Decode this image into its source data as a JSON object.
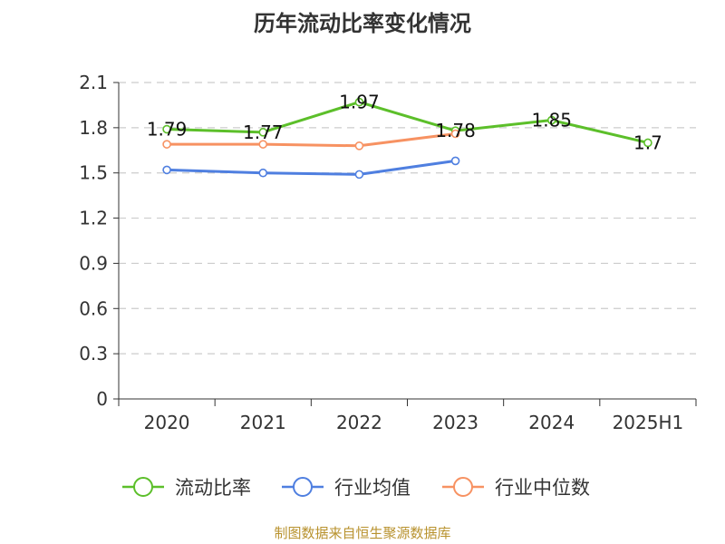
{
  "title": "历年流动比率变化情况",
  "source": "制图数据来自恒生聚源数据库",
  "colors": {
    "axis": "#333333",
    "grid": "#cccccc"
  },
  "chart_data": {
    "type": "line",
    "categories": [
      "2020",
      "2021",
      "2022",
      "2023",
      "2024",
      "2025H1"
    ],
    "y_ticks": [
      "0",
      "0.3",
      "0.6",
      "0.9",
      "1.2",
      "1.5",
      "1.8",
      "2.1"
    ],
    "ylim": [
      0,
      2.1
    ],
    "grid": "horizontal dashed",
    "legend_position": "bottom",
    "series": [
      {
        "name": "流动比率",
        "color": "#5cbf2a",
        "values": [
          1.79,
          1.77,
          1.97,
          1.78,
          1.85,
          1.7
        ],
        "labels": [
          "1.79",
          "1.77",
          "1.97",
          "1.78",
          "1.85",
          "1.7"
        ]
      },
      {
        "name": "行业均值",
        "color": "#4f7fe0",
        "values": [
          1.52,
          1.5,
          1.49,
          1.58,
          null,
          null
        ]
      },
      {
        "name": "行业中位数",
        "color": "#f79262",
        "values": [
          1.69,
          1.69,
          1.68,
          1.76,
          null,
          null
        ]
      }
    ]
  }
}
